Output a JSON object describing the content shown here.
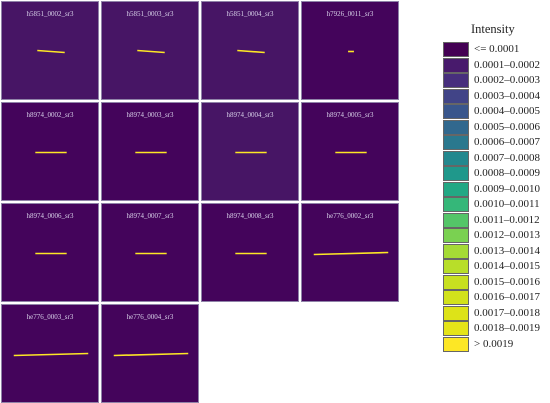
{
  "chart_data": {
    "type": "heatmap",
    "legend": {
      "title": "Intensity",
      "bins": [
        {
          "label": "<= 0.0001",
          "color": "#440154"
        },
        {
          "label": "0.0001–0.0002",
          "color": "#481a6c"
        },
        {
          "label": "0.0002–0.0003",
          "color": "#472f7d"
        },
        {
          "label": "0.0003–0.0004",
          "color": "#414487"
        },
        {
          "label": "0.0004–0.0005",
          "color": "#39568c"
        },
        {
          "label": "0.0005–0.0006",
          "color": "#31688e"
        },
        {
          "label": "0.0006–0.0007",
          "color": "#2a788e"
        },
        {
          "label": "0.0007–0.0008",
          "color": "#23888e"
        },
        {
          "label": "0.0008–0.0009",
          "color": "#1f988b"
        },
        {
          "label": "0.0009–0.0010",
          "color": "#22a884"
        },
        {
          "label": "0.0010–0.0011",
          "color": "#35b779"
        },
        {
          "label": "0.0011–0.0012",
          "color": "#54c568"
        },
        {
          "label": "0.0012–0.0013",
          "color": "#7ad151"
        },
        {
          "label": "0.0013–0.0014",
          "color": "#a5db36"
        },
        {
          "label": "0.0014–0.0015",
          "color": "#b8de29"
        },
        {
          "label": "0.0015–0.0016",
          "color": "#c8e020"
        },
        {
          "label": "0.0016–0.0017",
          "color": "#d2e21b"
        },
        {
          "label": "0.0017–0.0018",
          "color": "#dde318"
        },
        {
          "label": "0.0018–0.0019",
          "color": "#e5e419"
        },
        {
          "label": "> 0.0019",
          "color": "#fde725"
        }
      ]
    },
    "panels": [
      {
        "name": "h5851_0002_sr3",
        "background": "#471565",
        "line_color": "#fde725",
        "line": {
          "x0": 0.36,
          "y0": 0.49,
          "x1": 0.64,
          "y1": 0.51
        }
      },
      {
        "name": "h5851_0003_sr3",
        "background": "#471565",
        "line_color": "#fde725",
        "line": {
          "x0": 0.36,
          "y0": 0.49,
          "x1": 0.64,
          "y1": 0.51
        }
      },
      {
        "name": "h5851_0004_sr3",
        "background": "#471565",
        "line_color": "#fde725",
        "line": {
          "x0": 0.36,
          "y0": 0.49,
          "x1": 0.64,
          "y1": 0.51
        }
      },
      {
        "name": "h7926_0011_sr3",
        "background": "#44045b",
        "line_color": "#fde725",
        "line": {
          "x0": 0.47,
          "y0": 0.5,
          "x1": 0.53,
          "y1": 0.5
        }
      },
      {
        "name": "h8974_0002_sr3",
        "background": "#44045b",
        "line_color": "#fde725",
        "line": {
          "x0": 0.34,
          "y0": 0.5,
          "x1": 0.66,
          "y1": 0.5
        }
      },
      {
        "name": "h8974_0003_sr3",
        "background": "#44045b",
        "line_color": "#fde725",
        "line": {
          "x0": 0.34,
          "y0": 0.5,
          "x1": 0.66,
          "y1": 0.5
        }
      },
      {
        "name": "h8974_0004_sr3",
        "background": "#471565",
        "line_color": "#fde725",
        "line": {
          "x0": 0.34,
          "y0": 0.5,
          "x1": 0.66,
          "y1": 0.5
        }
      },
      {
        "name": "h8974_0005_sr3",
        "background": "#44045b",
        "line_color": "#fde725",
        "line": {
          "x0": 0.34,
          "y0": 0.5,
          "x1": 0.66,
          "y1": 0.5
        }
      },
      {
        "name": "h8974_0006_sr3",
        "background": "#44045b",
        "line_color": "#fde725",
        "line": {
          "x0": 0.34,
          "y0": 0.5,
          "x1": 0.66,
          "y1": 0.5
        }
      },
      {
        "name": "h8974_0007_sr3",
        "background": "#44045b",
        "line_color": "#fde725",
        "line": {
          "x0": 0.34,
          "y0": 0.5,
          "x1": 0.66,
          "y1": 0.5
        }
      },
      {
        "name": "h8974_0008_sr3",
        "background": "#44045b",
        "line_color": "#fde725",
        "line": {
          "x0": 0.34,
          "y0": 0.5,
          "x1": 0.66,
          "y1": 0.5
        }
      },
      {
        "name": "he776_0002_sr3",
        "background": "#44045b",
        "line_color": "#fde725",
        "line": {
          "x0": 0.12,
          "y0": 0.51,
          "x1": 0.88,
          "y1": 0.49
        }
      },
      {
        "name": "he776_0003_sr3",
        "background": "#44045b",
        "line_color": "#fde725",
        "line": {
          "x0": 0.12,
          "y0": 0.51,
          "x1": 0.88,
          "y1": 0.49
        }
      },
      {
        "name": "he776_0004_sr3",
        "background": "#44045b",
        "line_color": "#fde725",
        "line": {
          "x0": 0.12,
          "y0": 0.51,
          "x1": 0.88,
          "y1": 0.49
        }
      }
    ]
  }
}
